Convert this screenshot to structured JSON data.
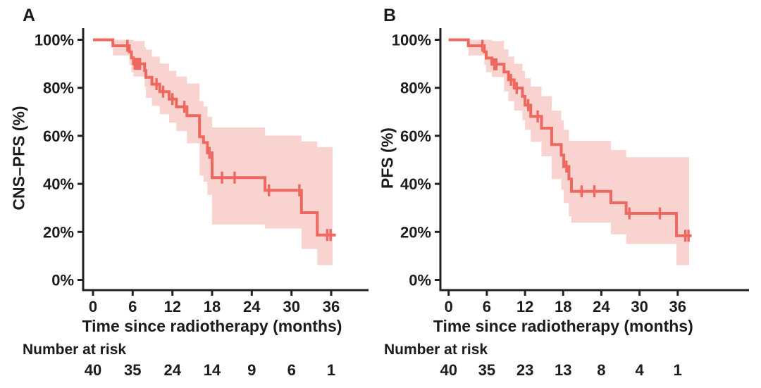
{
  "figure_background": "#ffffff",
  "axis_color": "#222222",
  "chart_data": [
    {
      "type": "line",
      "subtype": "kaplan-meier-step-curve-with-confidence-band",
      "panel_label": "A",
      "ylabel": "CNS–PFS (%)",
      "xlabel": "Time since radiotherapy (months)",
      "xlim": [
        0,
        42
      ],
      "ylim": [
        0,
        100
      ],
      "grid": false,
      "legend": "none",
      "x_ticks": [
        0,
        6,
        12,
        18,
        24,
        30,
        36
      ],
      "y_tick_values": [
        100,
        80,
        60,
        40,
        20,
        0
      ],
      "y_tick_labels": [
        "100%",
        "80%",
        "60%",
        "40%",
        "20%",
        "0%"
      ],
      "line_color": "#ee6860",
      "band_color": "#f9d3cf",
      "steps_fields": [
        "time_months",
        "survival_pct",
        "ci_lower_pct",
        "ci_upper_pct"
      ],
      "steps": [
        [
          0.0,
          100.0,
          null,
          null
        ],
        [
          3.0,
          97.5,
          93.5,
          100.0
        ],
        [
          5.5,
          95.0,
          89.5,
          100.0
        ],
        [
          5.8,
          92.5,
          86.5,
          100.0
        ],
        [
          6.1,
          90.0,
          84.7,
          99.5
        ],
        [
          7.8,
          87.2,
          80.5,
          97.0
        ],
        [
          8.0,
          84.4,
          75.8,
          95.9
        ],
        [
          8.9,
          81.5,
          72.5,
          93.0
        ],
        [
          10.1,
          78.4,
          69.0,
          90.1
        ],
        [
          11.5,
          75.3,
          65.5,
          87.1
        ],
        [
          12.6,
          72.1,
          62.0,
          84.7
        ],
        [
          14.2,
          68.4,
          56.9,
          81.8
        ],
        [
          16.1,
          59.6,
          43.5,
          74.5
        ],
        [
          16.7,
          57.2,
          40.9,
          72.2
        ],
        [
          17.3,
          52.9,
          35.4,
          68.0
        ],
        [
          18.0,
          42.6,
          23.1,
          63.5
        ],
        [
          26.0,
          37.3,
          21.4,
          60.1
        ],
        [
          31.5,
          28.0,
          12.9,
          57.7
        ],
        [
          33.9,
          18.7,
          6.2,
          55.3
        ]
      ],
      "curve_end": 36.7,
      "band_end": 36.2,
      "censors_fields": [
        "time_months",
        "survival_pct"
      ],
      "censors": [
        [
          5.2,
          97.5
        ],
        [
          6.3,
          90.0
        ],
        [
          6.55,
          90.0
        ],
        [
          6.8,
          90.0
        ],
        [
          7.1,
          90.0
        ],
        [
          9.6,
          81.5
        ],
        [
          10.6,
          78.4
        ],
        [
          12.0,
          75.3
        ],
        [
          13.8,
          72.1
        ],
        [
          17.6,
          52.9
        ],
        [
          19.5,
          42.6
        ],
        [
          21.4,
          42.6
        ],
        [
          26.6,
          37.3
        ],
        [
          31.2,
          37.3
        ],
        [
          35.4,
          18.7
        ],
        [
          35.9,
          18.7
        ]
      ],
      "risk_label": "Number at risk",
      "risk_times": [
        0,
        6,
        12,
        18,
        24,
        30,
        36
      ],
      "risk_counts": [
        "40",
        "35",
        "24",
        "14",
        "9",
        "6",
        "1"
      ]
    },
    {
      "type": "line",
      "subtype": "kaplan-meier-step-curve-with-confidence-band",
      "panel_label": "B",
      "ylabel": "PFS (%)",
      "xlabel": "Time since radiotherapy (months)",
      "xlim": [
        0,
        42
      ],
      "ylim": [
        0,
        100
      ],
      "grid": false,
      "legend": "none",
      "x_ticks": [
        0,
        6,
        12,
        18,
        24,
        30,
        36
      ],
      "y_tick_values": [
        100,
        80,
        60,
        40,
        20,
        0
      ],
      "y_tick_labels": [
        "100%",
        "80%",
        "60%",
        "40%",
        "20%",
        "0%"
      ],
      "line_color": "#ee6860",
      "band_color": "#f9d3cf",
      "steps_fields": [
        "time_months",
        "survival_pct",
        "ci_lower_pct",
        "ci_upper_pct"
      ],
      "steps": [
        [
          0.0,
          100.0,
          null,
          null
        ],
        [
          3.1,
          97.5,
          93.5,
          100.0
        ],
        [
          5.6,
          95.0,
          89.5,
          100.0
        ],
        [
          5.9,
          92.4,
          86.5,
          100.0
        ],
        [
          6.8,
          89.8,
          84.5,
          99.5
        ],
        [
          8.7,
          86.6,
          78.5,
          96.0
        ],
        [
          9.4,
          83.3,
          74.5,
          93.0
        ],
        [
          10.3,
          79.9,
          70.5,
          90.0
        ],
        [
          11.6,
          76.4,
          66.5,
          87.0
        ],
        [
          12.0,
          72.8,
          62.5,
          84.0
        ],
        [
          12.9,
          68.1,
          57.5,
          80.5
        ],
        [
          14.6,
          63.2,
          51.5,
          76.5
        ],
        [
          16.2,
          56.4,
          42.0,
          70.5
        ],
        [
          17.7,
          52.0,
          37.5,
          66.5
        ],
        [
          18.1,
          47.2,
          32.0,
          62.5
        ],
        [
          18.9,
          42.0,
          26.5,
          58.0
        ],
        [
          19.3,
          36.9,
          23.8,
          57.9
        ],
        [
          25.5,
          32.1,
          19.0,
          54.1
        ],
        [
          27.9,
          27.7,
          15.0,
          51.1
        ],
        [
          35.8,
          18.4,
          6.2,
          51.1
        ]
      ],
      "curve_end": 38.2,
      "band_end": 37.8,
      "censors_fields": [
        "time_months",
        "survival_pct"
      ],
      "censors": [
        [
          5.3,
          97.5
        ],
        [
          7.2,
          89.8
        ],
        [
          7.5,
          89.8
        ],
        [
          9.8,
          83.3
        ],
        [
          10.7,
          79.9
        ],
        [
          12.5,
          72.8
        ],
        [
          14.0,
          68.1
        ],
        [
          18.5,
          47.2
        ],
        [
          20.9,
          36.9
        ],
        [
          22.9,
          36.9
        ],
        [
          28.4,
          27.7
        ],
        [
          33.2,
          27.7
        ],
        [
          37.2,
          18.4
        ],
        [
          37.7,
          18.4
        ]
      ],
      "risk_label": "Number at risk",
      "risk_times": [
        0,
        6,
        12,
        18,
        24,
        30,
        36
      ],
      "risk_counts": [
        "40",
        "35",
        "23",
        "13",
        "8",
        "4",
        "1"
      ]
    }
  ]
}
